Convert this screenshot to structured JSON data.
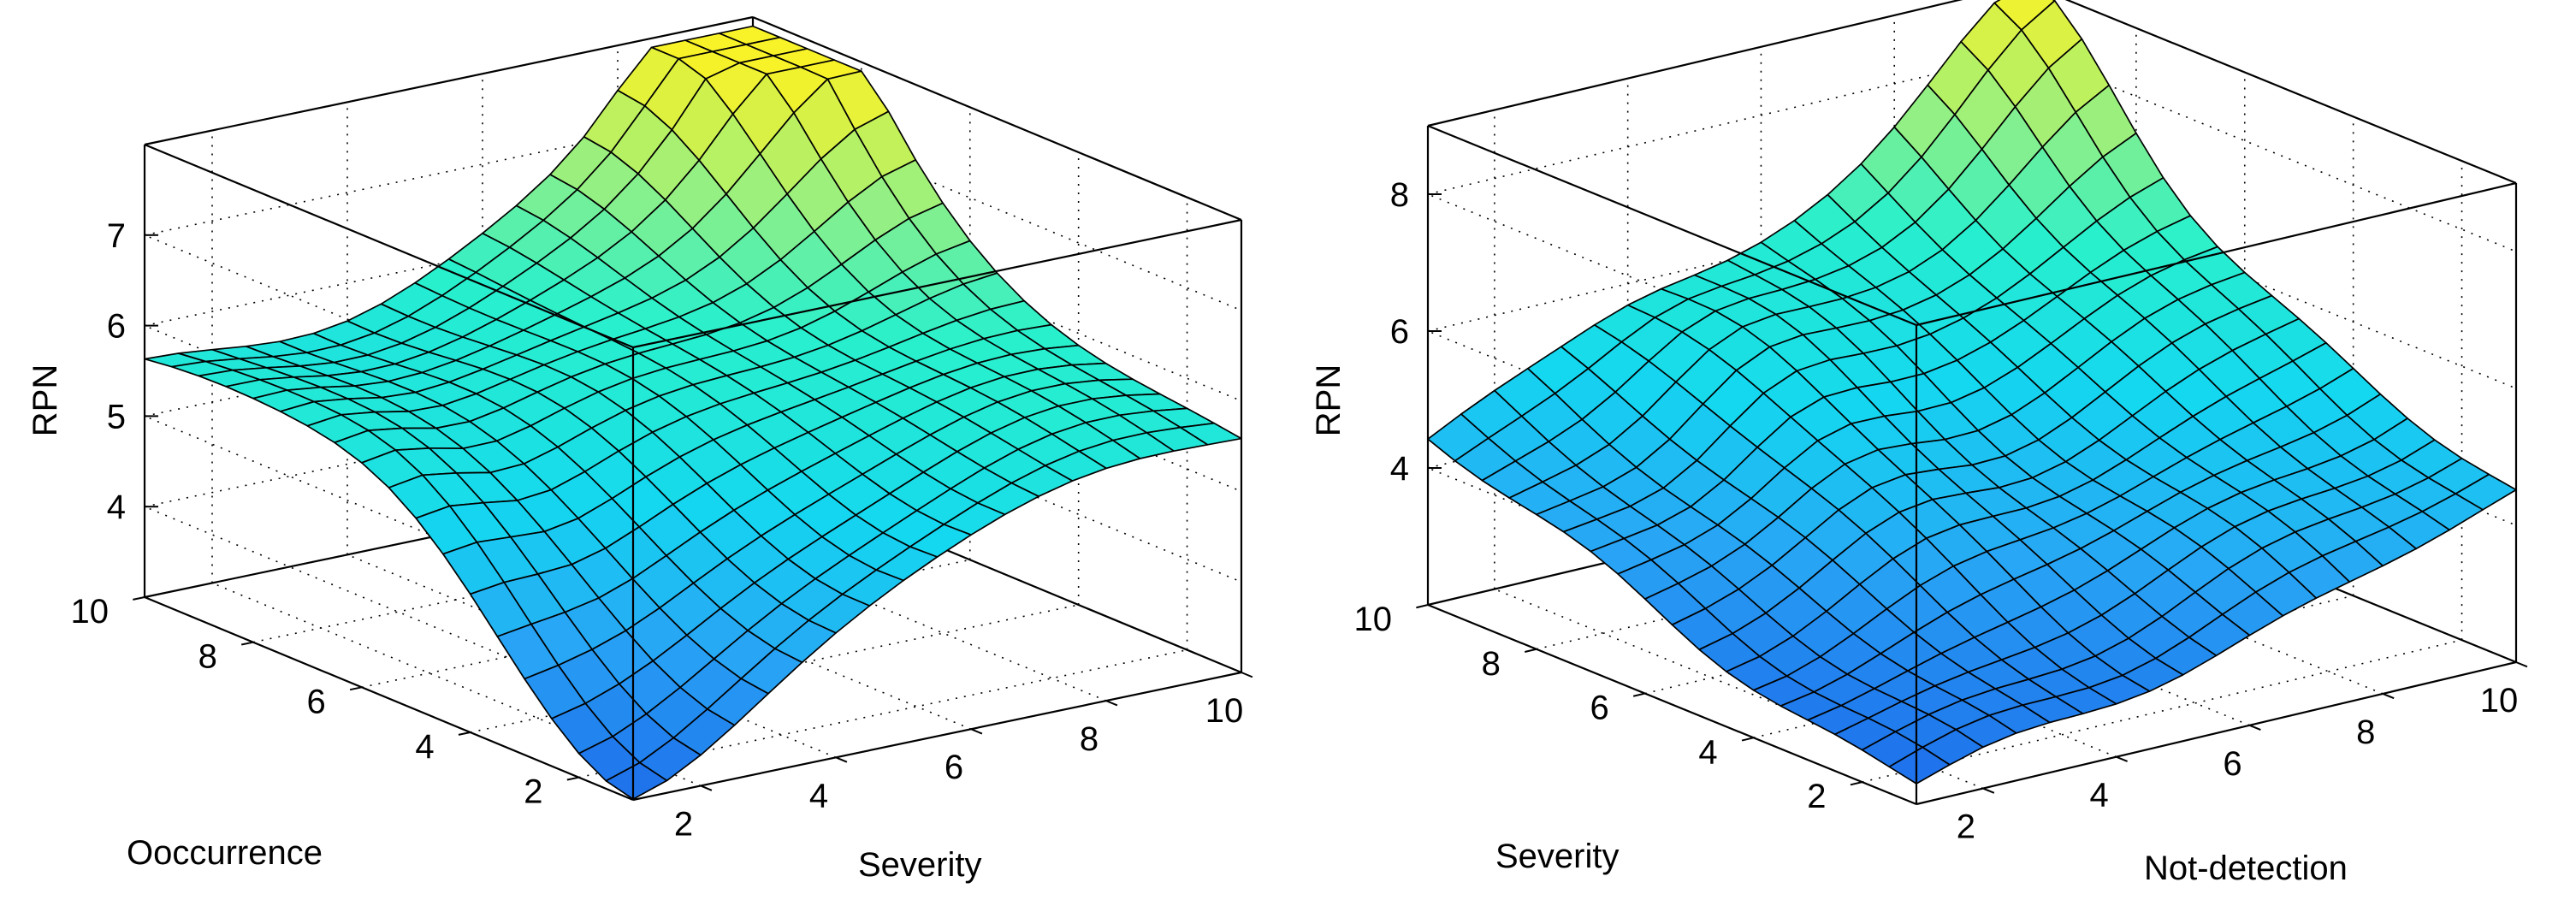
{
  "chart_data": [
    {
      "type": "surface",
      "ylabel_axis": "Ooccurrence",
      "xlabel_axis": "Severity",
      "zlabel": "RPN",
      "x_range": [
        1,
        10
      ],
      "y_range": [
        1,
        10
      ],
      "z_range": [
        3,
        8
      ],
      "x_ticks": [
        "2",
        "4",
        "6",
        "8",
        "10"
      ],
      "y_ticks": [
        "2",
        "4",
        "6",
        "8",
        "10"
      ],
      "z_ticks": [
        "4",
        "5",
        "6",
        "7"
      ],
      "z_tick_values": [
        4,
        5,
        6,
        7
      ],
      "grid_points": 19,
      "z_center": 5.5,
      "z_low_corner": 3.0,
      "z_peak": 7.9,
      "colormap_range": [
        3.0,
        7.9
      ]
    },
    {
      "type": "surface",
      "ylabel_axis": "Severity",
      "xlabel_axis": "Not-detection",
      "zlabel": "RPN",
      "x_range": [
        1,
        10
      ],
      "y_range": [
        1,
        10
      ],
      "z_range": [
        2,
        9
      ],
      "x_ticks": [
        "2",
        "4",
        "6",
        "8",
        "10"
      ],
      "y_ticks": [
        "2",
        "4",
        "6",
        "8",
        "10"
      ],
      "z_ticks": [
        "4",
        "6",
        "8"
      ],
      "z_tick_values": [
        4,
        6,
        8
      ],
      "grid_points": 19,
      "z_low_corner": 2.3,
      "z_peak": 9.0,
      "colormap_range": [
        2.3,
        9.0
      ]
    }
  ]
}
